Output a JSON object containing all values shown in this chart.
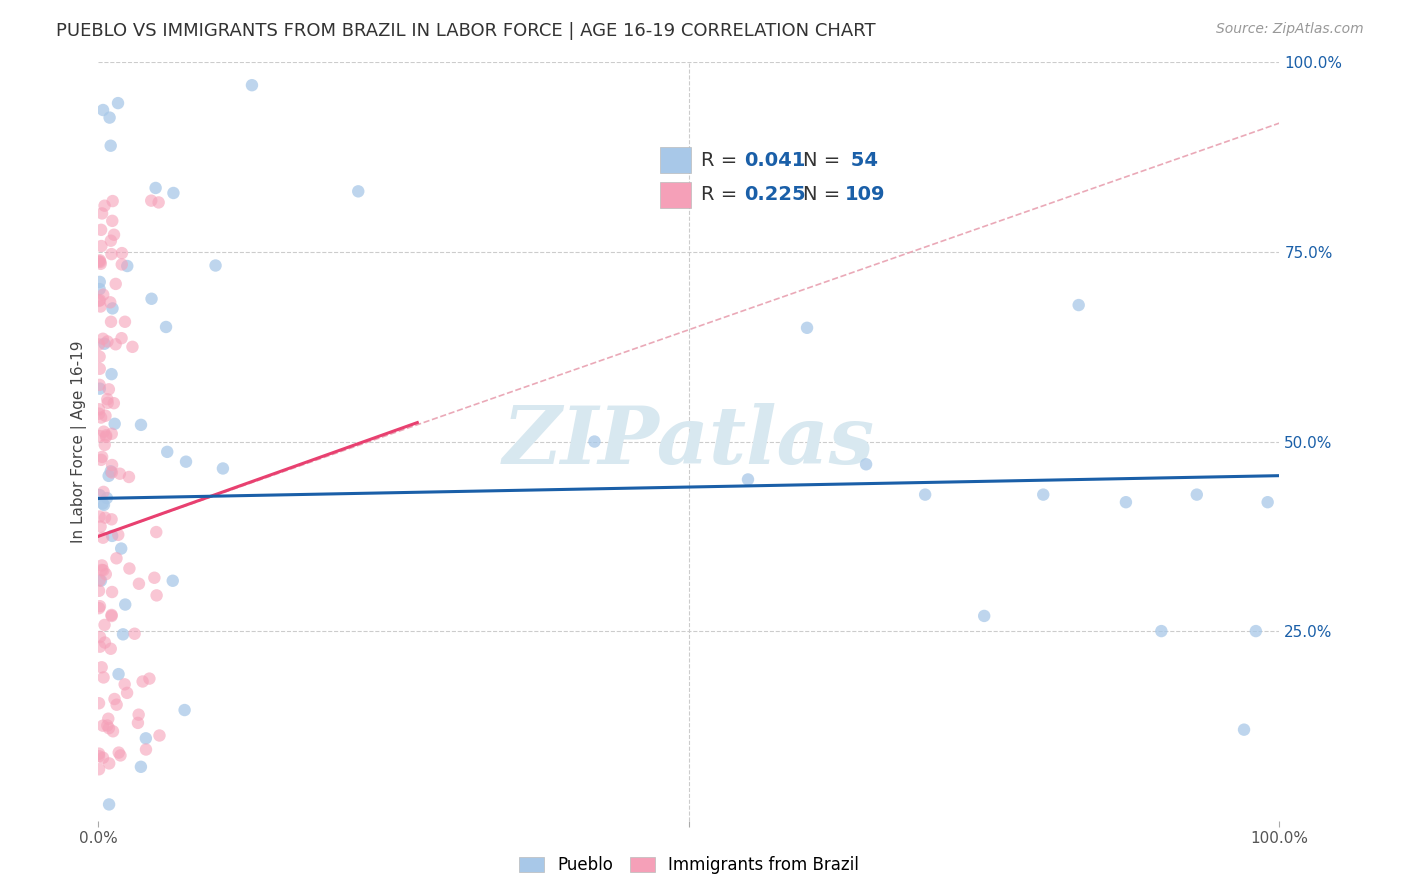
{
  "title": "PUEBLO VS IMMIGRANTS FROM BRAZIL IN LABOR FORCE | AGE 16-19 CORRELATION CHART",
  "source": "Source: ZipAtlas.com",
  "ylabel": "In Labor Force | Age 16-19",
  "watermark": "ZIPatlas",
  "legend_R1": "R = 0.041",
  "legend_N1": "N =  54",
  "legend_R2": "R = 0.225",
  "legend_N2": "N = 109",
  "pueblo_color": "#a8c8e8",
  "pueblo_line_color": "#1a5fa8",
  "brazil_color": "#f5a0b8",
  "brazil_line_color": "#e84070",
  "brazil_dashed_color": "#e8a0b0",
  "xlim": [
    0.0,
    1.0
  ],
  "ylim": [
    0.0,
    1.0
  ],
  "grid_color": "#cccccc",
  "background_color": "#ffffff",
  "watermark_color": "#d8e8f0",
  "title_fontsize": 13,
  "axis_tick_fontsize": 11,
  "right_tick_color": "#1a5fa8",
  "legend_fontsize": 14
}
